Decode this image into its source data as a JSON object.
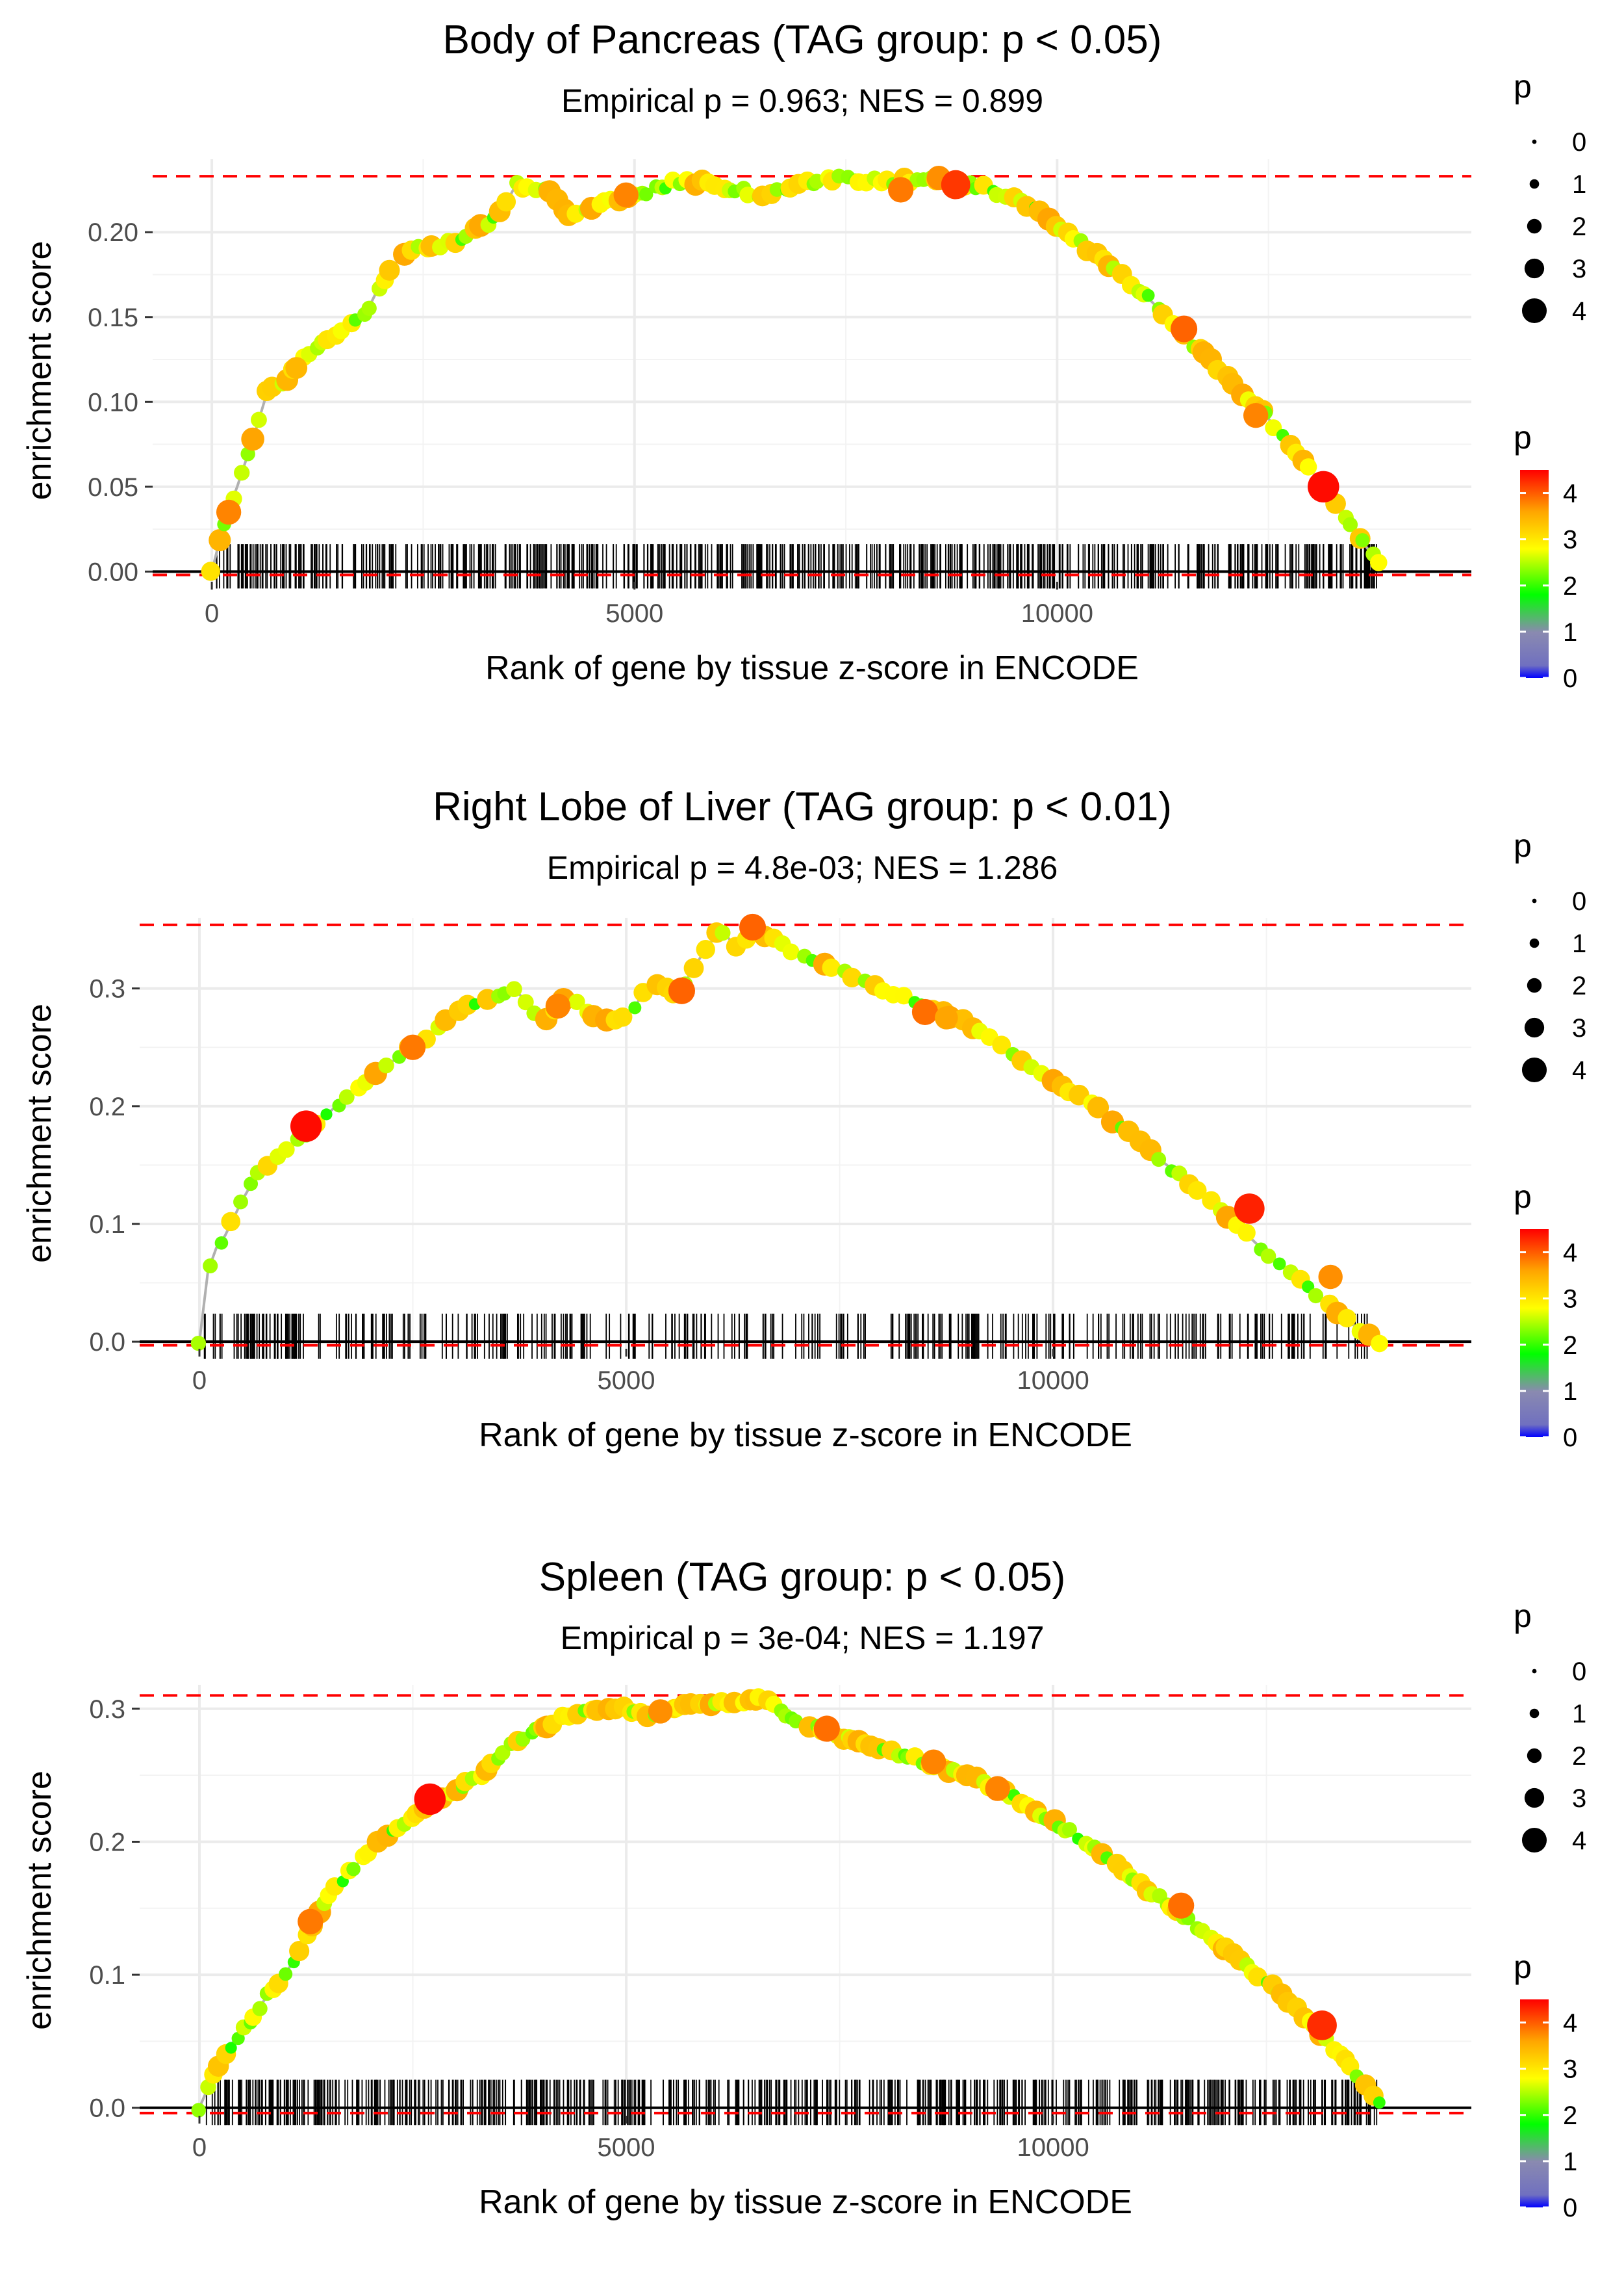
{
  "chart_data": [
    {
      "type": "line",
      "title": "Body of Pancreas (TAG group: p < 0.05)",
      "subtitle": "Empirical p = 0.963; NES = 0.899",
      "xlabel": "Rank of gene by tissue z-score in ENCODE",
      "ylabel": "enrichment score",
      "xlim": [
        -700,
        14900
      ],
      "ylim": [
        -0.006,
        0.243
      ],
      "xticks": [
        0,
        5000,
        10000
      ],
      "xtick_labels": [
        "0",
        "5000",
        "10000"
      ],
      "yticks": [
        0.0,
        0.05,
        0.1,
        0.15,
        0.2
      ],
      "ytick_labels": [
        "0.00",
        "0.05",
        "0.10",
        "0.15",
        "0.20"
      ],
      "max_es": 0.233,
      "min_es": -0.002,
      "series": [
        {
          "name": "running enrichment score",
          "x": [
            0,
            150,
            300,
            500,
            650,
            800,
            1000,
            1200,
            1500,
            1800,
            2000,
            2300,
            2500,
            2800,
            3100,
            3400,
            3600,
            3700,
            4000,
            4200,
            4500,
            4800,
            5200,
            5500,
            6000,
            6500,
            7000,
            7500,
            8000,
            8500,
            9000,
            9500,
            10000,
            10500,
            11000,
            11500,
            12000,
            12500,
            13000,
            13500,
            13800
          ],
          "y": [
            0.0,
            0.03,
            0.05,
            0.08,
            0.105,
            0.11,
            0.12,
            0.13,
            0.14,
            0.15,
            0.17,
            0.19,
            0.19,
            0.193,
            0.2,
            0.21,
            0.228,
            0.225,
            0.225,
            0.21,
            0.215,
            0.22,
            0.225,
            0.23,
            0.228,
            0.222,
            0.228,
            0.232,
            0.23,
            0.232,
            0.228,
            0.22,
            0.205,
            0.185,
            0.165,
            0.14,
            0.115,
            0.09,
            0.06,
            0.025,
            0.005
          ]
        }
      ],
      "highlight_points": [
        {
          "x": 200,
          "y": 0.035,
          "p": 3.3
        },
        {
          "x": 1000,
          "y": 0.12,
          "p": 2.8
        },
        {
          "x": 4900,
          "y": 0.222,
          "p": 3.3
        },
        {
          "x": 8150,
          "y": 0.225,
          "p": 3.4
        },
        {
          "x": 8600,
          "y": 0.232,
          "p": 3.2
        },
        {
          "x": 8800,
          "y": 0.228,
          "p": 4.0
        },
        {
          "x": 11500,
          "y": 0.143,
          "p": 3.6
        },
        {
          "x": 12350,
          "y": 0.092,
          "p": 3.3
        },
        {
          "x": 13150,
          "y": 0.05,
          "p": 4.4
        }
      ],
      "gene_ticks": {
        "start": 50,
        "end": 13800,
        "count": 620,
        "seed": 11
      },
      "point_density": 170,
      "color_bias": 0.5
    },
    {
      "type": "line",
      "title": "Right Lobe of Liver (TAG group: p < 0.01)",
      "subtitle": "Empirical p = 4.8e-03; NES = 1.286",
      "xlabel": "Rank of gene by tissue z-score in ENCODE",
      "ylabel": "enrichment score",
      "xlim": [
        -700,
        14900
      ],
      "ylim": [
        -0.006,
        0.36
      ],
      "xticks": [
        0,
        5000,
        10000
      ],
      "xtick_labels": [
        "0",
        "5000",
        "10000"
      ],
      "yticks": [
        0.0,
        0.1,
        0.2,
        0.3
      ],
      "ytick_labels": [
        "0.0",
        "0.1",
        "0.2",
        "0.3"
      ],
      "max_es": 0.354,
      "min_es": -0.003,
      "series": [
        {
          "name": "running enrichment score",
          "x": [
            0,
            100,
            200,
            300,
            500,
            700,
            1000,
            1300,
            1600,
            2000,
            2300,
            2600,
            3000,
            3300,
            3700,
            4000,
            4300,
            4600,
            5000,
            5300,
            5600,
            5900,
            6100,
            6300,
            6500,
            7000,
            7500,
            8000,
            8500,
            9000,
            9500,
            10000,
            10500,
            11000,
            11500,
            12000,
            12500,
            13000,
            13500,
            13800
          ],
          "y": [
            0.0,
            0.06,
            0.08,
            0.09,
            0.12,
            0.145,
            0.16,
            0.18,
            0.2,
            0.225,
            0.24,
            0.255,
            0.28,
            0.29,
            0.3,
            0.27,
            0.295,
            0.275,
            0.275,
            0.305,
            0.295,
            0.33,
            0.35,
            0.335,
            0.35,
            0.33,
            0.315,
            0.3,
            0.285,
            0.27,
            0.245,
            0.22,
            0.2,
            0.17,
            0.14,
            0.11,
            0.075,
            0.045,
            0.015,
            0.0
          ]
        }
      ],
      "highlight_points": [
        {
          "x": 1250,
          "y": 0.183,
          "p": 4.4
        },
        {
          "x": 2500,
          "y": 0.25,
          "p": 3.4
        },
        {
          "x": 4200,
          "y": 0.285,
          "p": 3.3
        },
        {
          "x": 5650,
          "y": 0.298,
          "p": 3.6
        },
        {
          "x": 6480,
          "y": 0.352,
          "p": 3.6
        },
        {
          "x": 8500,
          "y": 0.28,
          "p": 3.5
        },
        {
          "x": 8750,
          "y": 0.275,
          "p": 3.0
        },
        {
          "x": 12300,
          "y": 0.113,
          "p": 4.2
        },
        {
          "x": 13250,
          "y": 0.055,
          "p": 3.2
        }
      ],
      "gene_ticks": {
        "start": 50,
        "end": 13700,
        "count": 360,
        "seed": 23
      },
      "point_density": 120,
      "color_bias": 0.65
    },
    {
      "type": "line",
      "title": "Spleen (TAG group: p < 0.05)",
      "subtitle": "Empirical p = 3e-04; NES = 1.197",
      "xlabel": "Rank of gene by tissue z-score in ENCODE",
      "ylabel": "enrichment score",
      "xlim": [
        -700,
        14900
      ],
      "ylim": [
        -0.006,
        0.318
      ],
      "xticks": [
        0,
        5000,
        10000
      ],
      "xtick_labels": [
        "0",
        "5000",
        "10000"
      ],
      "yticks": [
        0.0,
        0.1,
        0.2,
        0.3
      ],
      "ytick_labels": [
        "0.0",
        "0.1",
        "0.2",
        "0.3"
      ],
      "max_es": 0.31,
      "min_es": -0.004,
      "series": [
        {
          "name": "running enrichment score",
          "x": [
            0,
            200,
            400,
            600,
            800,
            1000,
            1200,
            1500,
            1800,
            2100,
            2400,
            2700,
            3000,
            3300,
            3700,
            4000,
            4300,
            4700,
            5000,
            5300,
            5700,
            6000,
            6300,
            6600,
            7000,
            7500,
            8000,
            8500,
            9000,
            9500,
            10000,
            10500,
            11000,
            11500,
            12000,
            12500,
            13000,
            13500,
            13800
          ],
          "y": [
            0.0,
            0.03,
            0.05,
            0.065,
            0.085,
            0.1,
            0.12,
            0.16,
            0.18,
            0.2,
            0.215,
            0.23,
            0.24,
            0.25,
            0.275,
            0.285,
            0.295,
            0.3,
            0.3,
            0.295,
            0.305,
            0.305,
            0.305,
            0.308,
            0.29,
            0.28,
            0.27,
            0.26,
            0.25,
            0.235,
            0.215,
            0.195,
            0.17,
            0.145,
            0.12,
            0.095,
            0.065,
            0.03,
            0.005
          ]
        }
      ],
      "highlight_points": [
        {
          "x": 1300,
          "y": 0.14,
          "p": 3.4
        },
        {
          "x": 2700,
          "y": 0.232,
          "p": 4.4
        },
        {
          "x": 5400,
          "y": 0.298,
          "p": 3.2
        },
        {
          "x": 7350,
          "y": 0.285,
          "p": 3.5
        },
        {
          "x": 8600,
          "y": 0.26,
          "p": 3.3
        },
        {
          "x": 9350,
          "y": 0.24,
          "p": 3.3
        },
        {
          "x": 11500,
          "y": 0.152,
          "p": 3.5
        },
        {
          "x": 13150,
          "y": 0.062,
          "p": 4.1
        }
      ],
      "gene_ticks": {
        "start": 60,
        "end": 13800,
        "count": 640,
        "seed": 37
      },
      "point_density": 190,
      "color_bias": 0.4
    }
  ],
  "legend": {
    "size_title": "p",
    "size_entries": [
      "0",
      "1",
      "2",
      "3",
      "4"
    ],
    "color_title": "p",
    "color_ticks": [
      "0",
      "1",
      "2",
      "3",
      "4"
    ],
    "color_stops": [
      "#0000ff",
      "#8a8ab0",
      "#00ff00",
      "#ffff00",
      "#ffa500",
      "#ff0000"
    ]
  },
  "colors": {
    "reference_line": "#ff0000",
    "es_line": "#b0b0b0",
    "grid": "#ebebeb",
    "baseline": "#000000"
  }
}
